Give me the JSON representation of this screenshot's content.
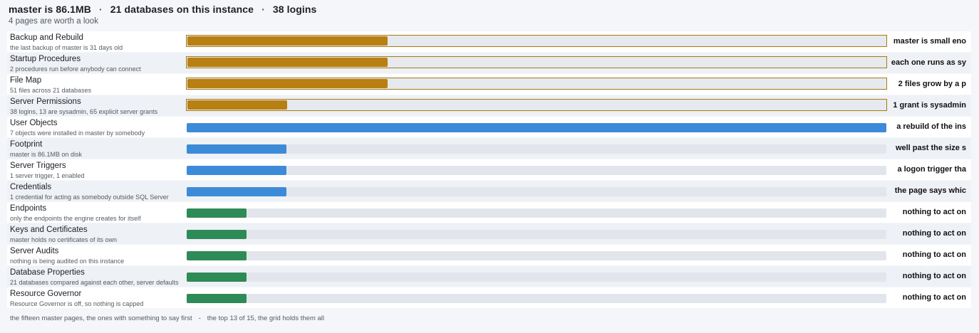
{
  "header": {
    "summary": [
      "master is 86.1MB",
      "21 databases on this instance",
      "38 logins"
    ],
    "separator": "·",
    "subtitle": "4 pages are worth a look"
  },
  "colors": {
    "attention": "#b87f12",
    "info": "#3d8bd8",
    "ok": "#2e8b57"
  },
  "rows": [
    {
      "name": "Backup and Rebuild",
      "desc": "the last backup of master is 31 days old",
      "verdict": "master is small eno",
      "level": 0.286,
      "tone": "attention"
    },
    {
      "name": "Startup Procedures",
      "desc": "2 procedures run before anybody can connect",
      "verdict": "each one runs as sy",
      "level": 0.286,
      "tone": "attention"
    },
    {
      "name": "File Map",
      "desc": "51 files across 21 databases",
      "verdict": "2 files grow by a p",
      "level": 0.286,
      "tone": "attention"
    },
    {
      "name": "Server Permissions",
      "desc": "38 logins, 13 are sysadmin, 65 explicit server grants",
      "verdict": "1 grant is sysadmin",
      "level": 0.143,
      "tone": "attention"
    },
    {
      "name": "User Objects",
      "desc": "7 objects were installed in master by somebody",
      "verdict": "a rebuild of the ins",
      "level": 1.0,
      "tone": "info"
    },
    {
      "name": "Footprint",
      "desc": "master is 86.1MB on disk",
      "verdict": "well past the size s",
      "level": 0.143,
      "tone": "info"
    },
    {
      "name": "Server Triggers",
      "desc": "1 server trigger, 1 enabled",
      "verdict": "a logon trigger tha",
      "level": 0.143,
      "tone": "info"
    },
    {
      "name": "Credentials",
      "desc": "1 credential for acting as somebody outside SQL Server",
      "verdict": "the page says whic",
      "level": 0.143,
      "tone": "info"
    },
    {
      "name": "Endpoints",
      "desc": "only the endpoints the engine creates for itself",
      "verdict": "nothing to act on",
      "level": 0.086,
      "tone": "ok"
    },
    {
      "name": "Keys and Certificates",
      "desc": "master holds no certificates of its own",
      "verdict": "nothing to act on",
      "level": 0.086,
      "tone": "ok"
    },
    {
      "name": "Server Audits",
      "desc": "nothing is being audited on this instance",
      "verdict": "nothing to act on",
      "level": 0.086,
      "tone": "ok"
    },
    {
      "name": "Database Properties",
      "desc": "21 databases compared against each other, server defaults",
      "verdict": "nothing to act on",
      "level": 0.086,
      "tone": "ok"
    },
    {
      "name": "Resource Governor",
      "desc": "Resource Governor is off, so nothing is capped",
      "verdict": "nothing to act on",
      "level": 0.086,
      "tone": "ok"
    }
  ],
  "footer": {
    "left": "the fifteen master pages, the ones with something to say first",
    "dash": "-",
    "right": "the top 13 of 15, the grid holds them all"
  }
}
